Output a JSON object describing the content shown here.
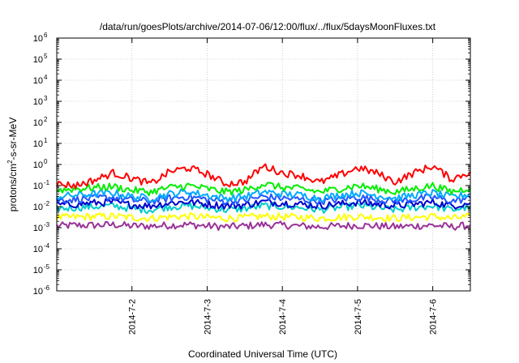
{
  "chart_data": {
    "type": "line",
    "title": "/data/run/goesPlots/archive/2014-07-06/12:00/flux/../flux/5daysMoonFluxes.txt",
    "xlabel": "Coordinated Universal Time (UTC)",
    "ylabel": "protons/cm2-s-sr-MeV",
    "yscale": "log",
    "ylim": [
      1e-06,
      1000000.0
    ],
    "xlim": [
      "2014-07-01 00:00",
      "2014-07-06 12:00"
    ],
    "x_ticks": [
      "2014-7-2",
      "2014-7-3",
      "2014-7-4",
      "2014-7-5",
      "2014-7-6"
    ],
    "y_ticks": [
      {
        "base": "10",
        "exp": "-6"
      },
      {
        "base": "10",
        "exp": "-5"
      },
      {
        "base": "10",
        "exp": "-4"
      },
      {
        "base": "10",
        "exp": "-3"
      },
      {
        "base": "10",
        "exp": "-2"
      },
      {
        "base": "10",
        "exp": "-1"
      },
      {
        "base": "10",
        "exp": "0"
      },
      {
        "base": "10",
        "exp": "1"
      },
      {
        "base": "10",
        "exp": "2"
      },
      {
        "base": "10",
        "exp": "3"
      },
      {
        "base": "10",
        "exp": "4"
      },
      {
        "base": "10",
        "exp": "5"
      },
      {
        "base": "10",
        "exp": "6"
      }
    ],
    "grid": true,
    "x": [
      "2014-07-01 00:00",
      "2014-07-01 06:00",
      "2014-07-01 12:00",
      "2014-07-01 18:00",
      "2014-07-02 00:00",
      "2014-07-02 06:00",
      "2014-07-02 12:00",
      "2014-07-02 18:00",
      "2014-07-03 00:00",
      "2014-07-03 06:00",
      "2014-07-03 12:00",
      "2014-07-03 18:00",
      "2014-07-04 00:00",
      "2014-07-04 06:00",
      "2014-07-04 12:00",
      "2014-07-04 18:00",
      "2014-07-05 00:00",
      "2014-07-05 06:00",
      "2014-07-05 12:00",
      "2014-07-05 18:00",
      "2014-07-06 00:00",
      "2014-07-06 06:00",
      "2014-07-06 12:00"
    ],
    "series": [
      {
        "color": "#ff0000",
        "values": [
          0.12,
          0.1,
          0.18,
          0.4,
          0.22,
          0.12,
          0.45,
          0.7,
          0.35,
          0.12,
          0.15,
          0.85,
          0.4,
          0.3,
          0.14,
          0.3,
          0.7,
          0.4,
          0.15,
          0.4,
          0.85,
          0.2,
          0.45
        ]
      },
      {
        "color": "#00ee00",
        "values": [
          0.06,
          0.07,
          0.08,
          0.09,
          0.06,
          0.05,
          0.08,
          0.1,
          0.07,
          0.05,
          0.06,
          0.12,
          0.08,
          0.07,
          0.05,
          0.07,
          0.1,
          0.07,
          0.05,
          0.07,
          0.1,
          0.05,
          0.08
        ]
      },
      {
        "color": "#00aaff",
        "values": [
          0.03,
          0.035,
          0.04,
          0.045,
          0.03,
          0.025,
          0.04,
          0.05,
          0.035,
          0.025,
          0.03,
          0.05,
          0.04,
          0.035,
          0.025,
          0.035,
          0.045,
          0.035,
          0.025,
          0.035,
          0.045,
          0.028,
          0.04
        ]
      },
      {
        "color": "#2255ff",
        "values": [
          0.02,
          0.022,
          0.025,
          0.028,
          0.02,
          0.018,
          0.025,
          0.03,
          0.022,
          0.018,
          0.02,
          0.03,
          0.025,
          0.022,
          0.018,
          0.022,
          0.028,
          0.022,
          0.018,
          0.022,
          0.028,
          0.018,
          0.025
        ]
      },
      {
        "color": "#0000cc",
        "values": [
          0.012,
          0.013,
          0.015,
          0.016,
          0.012,
          0.011,
          0.015,
          0.017,
          0.013,
          0.011,
          0.012,
          0.017,
          0.015,
          0.013,
          0.011,
          0.013,
          0.016,
          0.013,
          0.011,
          0.013,
          0.016,
          0.011,
          0.015
        ]
      },
      {
        "color": "#00cccc",
        "values": [
          0.008,
          0.009,
          0.01,
          0.011,
          0.008,
          0.007,
          0.01,
          0.011,
          0.009,
          0.007,
          0.008,
          0.011,
          0.01,
          0.009,
          0.007,
          0.009,
          0.011,
          0.009,
          0.007,
          0.009,
          0.011,
          0.007,
          0.01
        ]
      },
      {
        "color": "#ffff00",
        "values": [
          0.003,
          0.0032,
          0.0034,
          0.0035,
          0.003,
          0.0028,
          0.0033,
          0.0035,
          0.0031,
          0.0028,
          0.003,
          0.0035,
          0.0033,
          0.0031,
          0.0028,
          0.0031,
          0.0034,
          0.0031,
          0.0028,
          0.0031,
          0.0034,
          0.0028,
          0.0033
        ]
      },
      {
        "color": "#993399",
        "values": [
          0.0012,
          0.0013,
          0.0013,
          0.0014,
          0.0012,
          0.0012,
          0.0013,
          0.0014,
          0.0012,
          0.0011,
          0.0012,
          0.0014,
          0.0013,
          0.0012,
          0.0011,
          0.0012,
          0.0013,
          0.0012,
          0.0011,
          0.0012,
          0.0013,
          0.0011,
          0.0013
        ]
      }
    ]
  }
}
